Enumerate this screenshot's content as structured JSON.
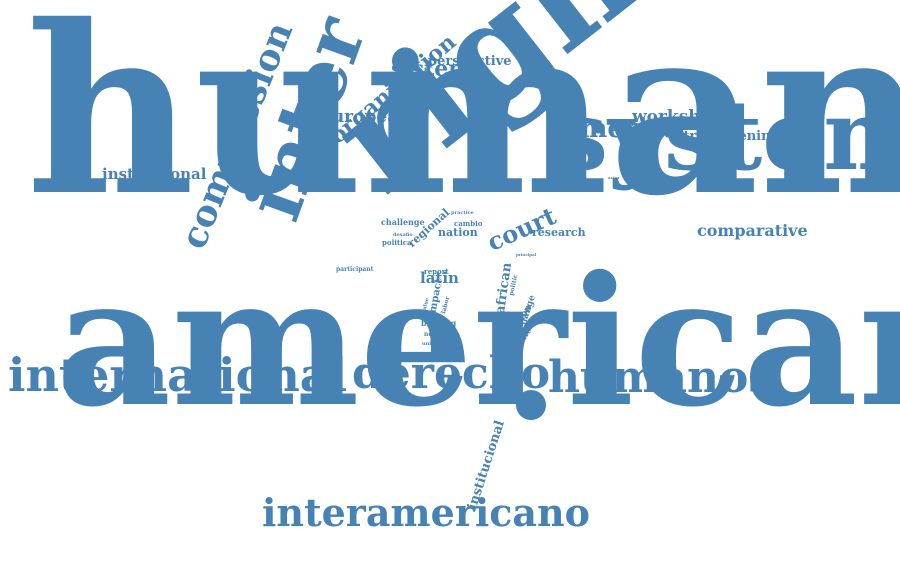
{
  "colors": {
    "word": "#4682b4",
    "background": "#ffffff"
  },
  "words": {
    "human": "human",
    "american": "american",
    "right": "right",
    "system": "system",
    "inter": "inter",
    "international": "international",
    "derecho": "derecho",
    "humanos": "humanos",
    "interamericano": "interamericano",
    "commission": "commission",
    "organization": "organization",
    "sistema": "sistema",
    "perspective": "perspective",
    "european": "european",
    "workshop": "workshop",
    "america": "america",
    "strengthening": "strengthening",
    "institutional": "institutional",
    "comparative": "comparative",
    "court": "court",
    "research": "research",
    "nation": "nation",
    "regional": "regional",
    "challenge": "challenge",
    "cambio": "cambio",
    "practice": "practice",
    "desafio": "desafio",
    "politica": "politica",
    "participant": "participant",
    "report": "report",
    "latin": "latin",
    "impact": "impact",
    "value": "value",
    "labor": "labor",
    "briefing": "briefing",
    "network": "network",
    "university": "university",
    "african": "african",
    "politic": "politic",
    "conclusion": "conclusion",
    "change": "change",
    "reflective": "reflective",
    "institucional": "institucional",
    "principal": "principal",
    "actor": "actor"
  }
}
